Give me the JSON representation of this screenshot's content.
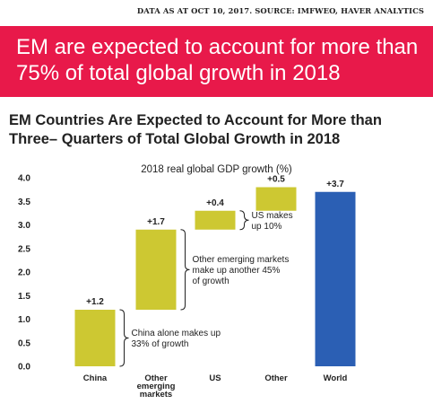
{
  "source_note": "DATA AS AT OCT 10, 2017. SOURCE: IMFWEO, HAVER ANALYTICS",
  "banner": {
    "text": "EM are expected to account for more than 75% of total global growth in 2018"
  },
  "chart_data": {
    "type": "bar",
    "subtype": "waterfall",
    "title": "EM Countries Are Expected to Account for More than Three– Quarters of Total Global Growth in 2018",
    "subtitle": "2018 real global GDP growth (%)",
    "xlabel": "",
    "ylabel": "",
    "ylim": [
      0,
      4.0
    ],
    "yticks": [
      "0.0",
      "0.5",
      "1.0",
      "1.5",
      "2.0",
      "2.5",
      "3.0",
      "3.5",
      "4.0"
    ],
    "grid": false,
    "categories": [
      {
        "label_lines": [
          "China"
        ]
      },
      {
        "label_lines": [
          "Other",
          "emerging",
          "markets"
        ]
      },
      {
        "label_lines": [
          "US"
        ]
      },
      {
        "label_lines": [
          "Other"
        ]
      },
      {
        "label_lines": [
          "World"
        ]
      }
    ],
    "bars": [
      {
        "start": 0.0,
        "value": 1.2,
        "label": "+1.2",
        "color": "#cdc832"
      },
      {
        "start": 1.2,
        "value": 1.7,
        "label": "+1.7",
        "color": "#cdc832"
      },
      {
        "start": 2.9,
        "value": 0.4,
        "label": "+0.4",
        "color": "#cdc832"
      },
      {
        "start": 3.3,
        "value": 0.5,
        "label": "+0.5",
        "color": "#cdc832"
      },
      {
        "start": 0.0,
        "value": 3.7,
        "label": "+3.7",
        "color": "#2b5fb4"
      }
    ],
    "annotations": [
      {
        "bar": 0,
        "lines": [
          "China alone makes up",
          "33% of growth"
        ]
      },
      {
        "bar": 1,
        "lines": [
          "Other emerging markets",
          "make up another 45%",
          "of growth"
        ]
      },
      {
        "bar": 2,
        "lines": [
          "US makes",
          "up 10%"
        ]
      }
    ]
  }
}
